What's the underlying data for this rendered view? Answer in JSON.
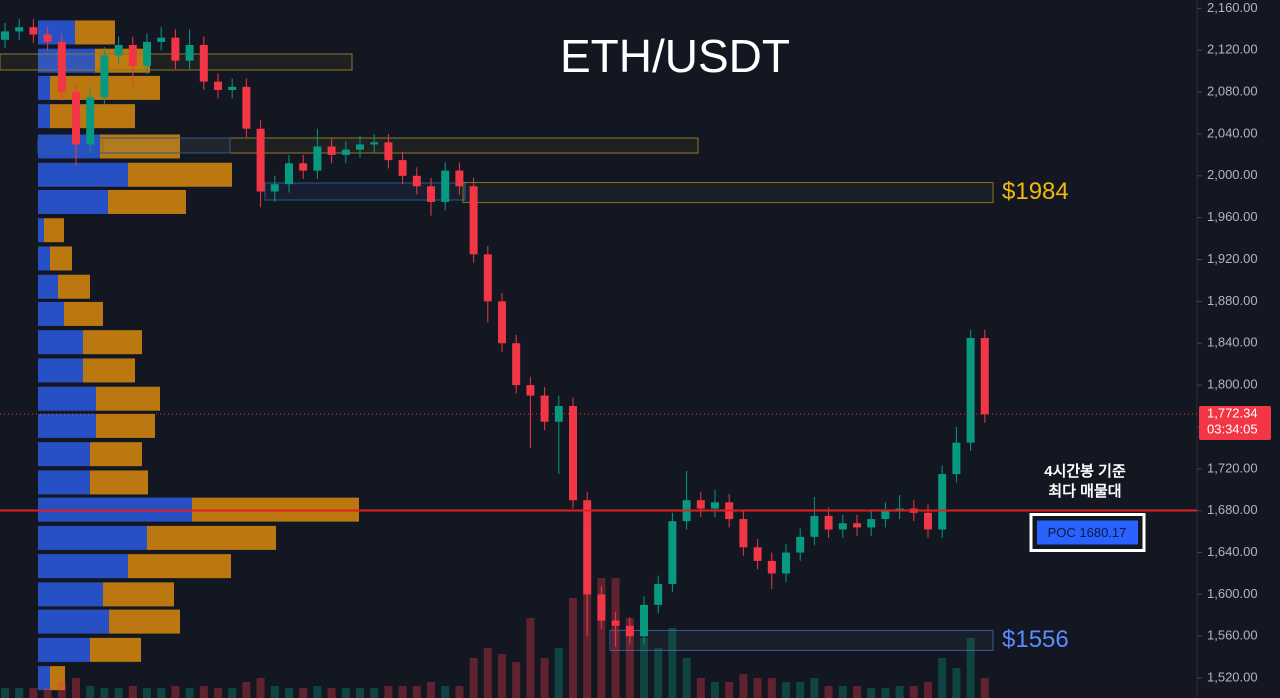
{
  "chart_data": {
    "type": "candlestick",
    "title": "ETH/USDT",
    "ylim": [
      1501,
      2168
    ],
    "yticks": [
      {
        "value": 2160,
        "label": "2,160.00"
      },
      {
        "value": 2120,
        "label": "2,120.00"
      },
      {
        "value": 2080,
        "label": "2,080.00"
      },
      {
        "value": 2040,
        "label": "2,040.00"
      },
      {
        "value": 2000,
        "label": "2,000.00"
      },
      {
        "value": 1960,
        "label": "1,960.00"
      },
      {
        "value": 1920,
        "label": "1,920.00"
      },
      {
        "value": 1880,
        "label": "1,880.00"
      },
      {
        "value": 1840,
        "label": "1,840.00"
      },
      {
        "value": 1800,
        "label": "1,800.00"
      },
      {
        "value": 1760,
        "label": "1,760.00"
      },
      {
        "value": 1720,
        "label": "1,720.00"
      },
      {
        "value": 1680,
        "label": "1,680.00"
      },
      {
        "value": 1640,
        "label": "1,640.00"
      },
      {
        "value": 1600,
        "label": "1,600.00"
      },
      {
        "value": 1560,
        "label": "1,560.00"
      },
      {
        "value": 1520,
        "label": "1,520.00"
      }
    ],
    "up_color": "#089981",
    "down_color": "#f23645",
    "open": [
      2130,
      2138,
      2142,
      2135,
      2128,
      2080,
      2030,
      2075,
      2115,
      2125,
      2105,
      2128,
      2132,
      2110,
      2125,
      2090,
      2082,
      2085,
      2045,
      1985,
      1992,
      2012,
      2005,
      2028,
      2020,
      2025,
      2030,
      2032,
      2015,
      2000,
      1990,
      1975,
      2005,
      1990,
      1925,
      1880,
      1840,
      1800,
      1790,
      1765,
      1780,
      1690,
      1600,
      1575,
      1570,
      1560,
      1590,
      1610,
      1670,
      1690,
      1682,
      1688,
      1672,
      1645,
      1632,
      1620,
      1640,
      1655,
      1675,
      1662,
      1668,
      1664,
      1672,
      1680,
      1682,
      1678,
      1662,
      1715,
      1745,
      1845
    ],
    "high": [
      2146,
      2150,
      2150,
      2143,
      2136,
      2088,
      2083,
      2123,
      2133,
      2133,
      2136,
      2142,
      2140,
      2140,
      2133,
      2098,
      2093,
      2093,
      2053,
      2000,
      2020,
      2020,
      2045,
      2036,
      2033,
      2038,
      2040,
      2040,
      2023,
      2008,
      1998,
      2013,
      2013,
      1998,
      1933,
      1888,
      1848,
      1808,
      1798,
      1790,
      1788,
      1698,
      1608,
      1583,
      1578,
      1598,
      1618,
      1678,
      1718,
      1698,
      1700,
      1696,
      1680,
      1653,
      1640,
      1648,
      1663,
      1693,
      1683,
      1676,
      1676,
      1680,
      1688,
      1695,
      1690,
      1686,
      1723,
      1760,
      1853,
      1853
    ],
    "low": [
      2122,
      2130,
      2127,
      2120,
      2072,
      2010,
      2022,
      2067,
      2107,
      2085,
      2097,
      2120,
      2102,
      2102,
      2082,
      2074,
      2074,
      2037,
      1970,
      1975,
      1984,
      1997,
      1997,
      2012,
      2012,
      2017,
      2022,
      2007,
      1992,
      1982,
      1962,
      1967,
      1982,
      1917,
      1860,
      1832,
      1792,
      1740,
      1757,
      1715,
      1682,
      1560,
      1567,
      1550,
      1552,
      1552,
      1582,
      1602,
      1662,
      1674,
      1674,
      1664,
      1637,
      1624,
      1605,
      1612,
      1632,
      1647,
      1654,
      1654,
      1656,
      1656,
      1664,
      1672,
      1670,
      1654,
      1654,
      1707,
      1737,
      1764
    ],
    "close": [
      2138,
      2142,
      2135,
      2128,
      2080,
      2030,
      2075,
      2115,
      2125,
      2105,
      2128,
      2132,
      2110,
      2125,
      2090,
      2082,
      2085,
      2045,
      1985,
      1992,
      2012,
      2005,
      2028,
      2020,
      2025,
      2030,
      2032,
      2015,
      2000,
      1990,
      1975,
      2005,
      1990,
      1925,
      1880,
      1840,
      1800,
      1790,
      1765,
      1780,
      1690,
      1600,
      1575,
      1570,
      1560,
      1590,
      1610,
      1670,
      1690,
      1682,
      1688,
      1672,
      1645,
      1632,
      1620,
      1640,
      1655,
      1675,
      1662,
      1668,
      1664,
      1672,
      1680,
      1682,
      1678,
      1662,
      1715,
      1745,
      1845,
      1772
    ],
    "volume": [
      5,
      5,
      5,
      5,
      8,
      10,
      6,
      5,
      5,
      6,
      5,
      5,
      6,
      5,
      6,
      5,
      5,
      8,
      10,
      6,
      5,
      5,
      6,
      5,
      5,
      5,
      5,
      6,
      6,
      6,
      8,
      6,
      6,
      20,
      25,
      22,
      18,
      40,
      20,
      25,
      50,
      84,
      60,
      60,
      40,
      30,
      25,
      35,
      20,
      10,
      8,
      8,
      12,
      10,
      10,
      8,
      8,
      10,
      6,
      6,
      6,
      5,
      5,
      6,
      6,
      8,
      20,
      15,
      30,
      10
    ],
    "volume_lim": [
      0,
      100
    ],
    "volume_profile": {
      "prices": [
        2137,
        2110,
        2084,
        2057,
        2028,
        2001,
        1975,
        1948,
        1921,
        1894,
        1868,
        1841,
        1814,
        1787,
        1761,
        1734,
        1707,
        1681,
        1654,
        1627,
        1600,
        1574,
        1547,
        1520
      ],
      "buy": [
        37,
        57,
        12,
        12,
        62,
        90,
        70,
        6,
        12,
        20,
        26,
        45,
        45,
        58,
        58,
        52,
        52,
        154,
        109,
        90,
        65,
        71,
        52,
        12
      ],
      "sell": [
        40,
        55,
        110,
        85,
        80,
        104,
        78,
        20,
        22,
        32,
        39,
        59,
        52,
        64,
        59,
        52,
        58,
        167,
        129,
        103,
        71,
        71,
        51,
        15
      ],
      "buy_color": "#2b5be0",
      "sell_color": "#d98a0d"
    },
    "poc": {
      "value": 1680.17,
      "label": "POC  1680.17"
    },
    "annotation": [
      "4시간봉 기준",
      "최다 매물대"
    ],
    "levels": [
      {
        "value": 1984,
        "label": "$1984",
        "color": "#f0b90b"
      },
      {
        "value": 1556,
        "label": "$1556",
        "color": "#5b8cff"
      }
    ],
    "last_price": {
      "value": 1772.34,
      "label": "1,772.34"
    },
    "countdown": "03:34:05"
  }
}
